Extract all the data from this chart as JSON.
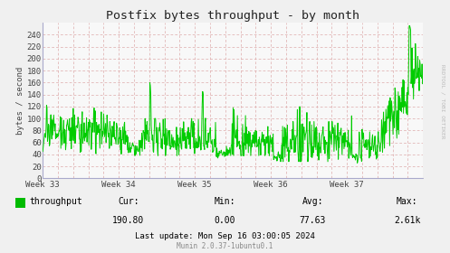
{
  "title": "Postfix bytes throughput - by month",
  "ylabel": "bytes / second",
  "bg_color": "#f0f0f0",
  "plot_bg_color": "#f8f8f8",
  "line_color": "#00cc00",
  "axis_color": "#9999bb",
  "text_color": "#444444",
  "title_color": "#222222",
  "watermark": "RRDTOOL / TOBI OETIKER",
  "footer_left": "throughput",
  "footer_cur_label": "Cur:",
  "footer_cur_val": "190.80",
  "footer_min_label": "Min:",
  "footer_min_val": "0.00",
  "footer_avg_label": "Avg:",
  "footer_avg_val": "77.63",
  "footer_max_label": "Max:",
  "footer_max_val": "2.61k",
  "footer_lastupdate": "Last update: Mon Sep 16 03:00:05 2024",
  "footer_munin": "Munin 2.0.37-1ubuntu0.1",
  "xticklabels": [
    "Week 33",
    "Week 34",
    "Week 35",
    "Week 36",
    "Week 37"
  ],
  "ylim": [
    0,
    260
  ],
  "yticks": [
    0,
    20,
    40,
    60,
    80,
    100,
    120,
    140,
    160,
    180,
    200,
    220,
    240
  ],
  "legend_color": "#00bb00",
  "grid_h_color": "#ddaaaa",
  "grid_v_color": "#ddaaaa",
  "spine_color": "#aaaacc"
}
